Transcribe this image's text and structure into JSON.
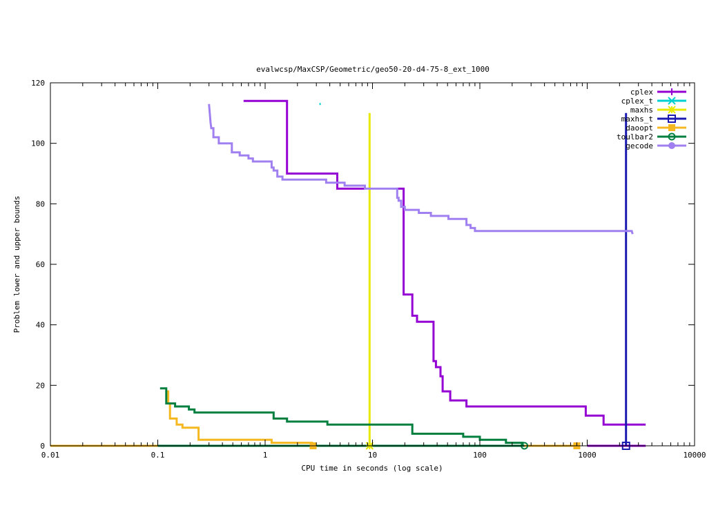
{
  "chart_data": {
    "type": "line",
    "title": "evalwcsp/MaxCSP/Geometric/geo50-20-d4-75-8_ext_1000",
    "xlabel": "CPU time in seconds (log scale)",
    "ylabel": "Problem lower and upper bounds",
    "xscale": "log",
    "xlim": [
      0.01,
      10000
    ],
    "ylim": [
      0,
      120
    ],
    "xticks": [
      {
        "value": 0.01,
        "label": "0.01"
      },
      {
        "value": 0.1,
        "label": "0.1"
      },
      {
        "value": 1,
        "label": "1"
      },
      {
        "value": 10,
        "label": "10"
      },
      {
        "value": 100,
        "label": "100"
      },
      {
        "value": 1000,
        "label": "1000"
      },
      {
        "value": 10000,
        "label": "10000"
      }
    ],
    "yticks": [
      {
        "value": 0,
        "label": "0"
      },
      {
        "value": 20,
        "label": "20"
      },
      {
        "value": 40,
        "label": "40"
      },
      {
        "value": 60,
        "label": "60"
      },
      {
        "value": 80,
        "label": "80"
      },
      {
        "value": 100,
        "label": "100"
      },
      {
        "value": 120,
        "label": "120"
      }
    ],
    "legend_position": "top-right",
    "grid": false,
    "series": [
      {
        "name": "cplex",
        "color": "#9400d3",
        "marker": "plus",
        "paths": [
          [
            [
              0.63,
              114
            ],
            [
              1.6,
              114
            ],
            [
              1.6,
              90
            ],
            [
              4.7,
              90
            ],
            [
              4.7,
              85
            ],
            [
              8.5,
              85
            ]
          ],
          [
            [
              17,
              85
            ],
            [
              19.5,
              85
            ],
            [
              19.5,
              50
            ],
            [
              23.5,
              50
            ],
            [
              23.5,
              43
            ],
            [
              26,
              43
            ],
            [
              26,
              41
            ],
            [
              37,
              41
            ],
            [
              37,
              28
            ],
            [
              39,
              28
            ],
            [
              39,
              26
            ],
            [
              43,
              26
            ],
            [
              43,
              23
            ],
            [
              45,
              23
            ],
            [
              45,
              18
            ],
            [
              53,
              18
            ],
            [
              53,
              15
            ],
            [
              75,
              15
            ],
            [
              75,
              13
            ],
            [
              970,
              13
            ],
            [
              970,
              10
            ],
            [
              1420,
              10
            ],
            [
              1420,
              7
            ],
            [
              3500,
              7
            ]
          ],
          [
            [
              1000,
              0
            ],
            [
              3500,
              0
            ]
          ]
        ],
        "markers": []
      },
      {
        "name": "cplex_t",
        "color": "#00d0d0",
        "marker": "x",
        "paths": [
          [
            [
              3.2,
              113
            ],
            [
              3.3,
              113
            ]
          ]
        ],
        "markers": []
      },
      {
        "name": "maxhs",
        "color": "#e8e800",
        "marker": "star",
        "paths": [
          [
            [
              9.4,
              110
            ],
            [
              9.4,
              0
            ]
          ],
          [
            [
              9.4,
              0
            ],
            [
              10,
              0
            ]
          ]
        ],
        "markers": [
          [
            9.4,
            0
          ]
        ]
      },
      {
        "name": "maxhs_t",
        "color": "#1a1ab0",
        "marker": "square",
        "paths": [
          [
            [
              2300,
              110
            ],
            [
              2300,
              0
            ]
          ]
        ],
        "markers": [
          [
            2300,
            0
          ]
        ]
      },
      {
        "name": "daoopt",
        "color": "#f5b820",
        "marker": "filled-square",
        "paths": [
          [
            [
              0.12,
              18
            ],
            [
              0.125,
              18
            ],
            [
              0.125,
              14
            ],
            [
              0.13,
              14
            ],
            [
              0.13,
              9
            ],
            [
              0.15,
              9
            ],
            [
              0.15,
              7
            ],
            [
              0.17,
              7
            ],
            [
              0.17,
              6
            ],
            [
              0.24,
              6
            ],
            [
              0.24,
              2
            ],
            [
              1.15,
              2
            ],
            [
              1.15,
              1
            ],
            [
              2.8,
              1
            ]
          ],
          [
            [
              0.01,
              0
            ],
            [
              800,
              0
            ]
          ]
        ],
        "markers": [
          [
            2.8,
            0
          ],
          [
            800,
            0
          ]
        ]
      },
      {
        "name": "toulbar2",
        "color": "#007f3f",
        "marker": "circle",
        "paths": [
          [
            [
              0.105,
              19
            ],
            [
              0.12,
              19
            ],
            [
              0.12,
              14
            ],
            [
              0.145,
              14
            ],
            [
              0.145,
              13
            ],
            [
              0.195,
              13
            ],
            [
              0.195,
              12
            ],
            [
              0.22,
              12
            ],
            [
              0.22,
              11
            ],
            [
              1.2,
              11
            ],
            [
              1.2,
              9
            ],
            [
              1.6,
              9
            ],
            [
              1.6,
              8
            ],
            [
              3.8,
              8
            ],
            [
              3.8,
              7
            ],
            [
              23.5,
              7
            ],
            [
              23.5,
              4
            ],
            [
              70,
              4
            ],
            [
              70,
              3
            ],
            [
              100,
              3
            ],
            [
              100,
              2
            ],
            [
              175,
              2
            ],
            [
              175,
              1
            ],
            [
              250,
              1
            ],
            [
              250,
              0
            ]
          ],
          [
            [
              0.1,
              0
            ],
            [
              260,
              0
            ]
          ]
        ],
        "markers": [
          [
            260,
            0
          ]
        ]
      },
      {
        "name": "gecode",
        "color": "#a080f0",
        "marker": "filled-circle",
        "paths": [
          [
            [
              0.3,
              113
            ],
            [
              0.305,
              110
            ],
            [
              0.31,
              107
            ],
            [
              0.315,
              105
            ],
            [
              0.33,
              105
            ],
            [
              0.33,
              102
            ],
            [
              0.37,
              102
            ],
            [
              0.37,
              100
            ],
            [
              0.49,
              100
            ],
            [
              0.49,
              97
            ],
            [
              0.58,
              97
            ],
            [
              0.58,
              96
            ],
            [
              0.7,
              96
            ],
            [
              0.7,
              95
            ],
            [
              0.77,
              95
            ],
            [
              0.77,
              94
            ],
            [
              1.15,
              94
            ],
            [
              1.15,
              92
            ],
            [
              1.2,
              92
            ],
            [
              1.2,
              91
            ],
            [
              1.3,
              91
            ],
            [
              1.3,
              89
            ],
            [
              1.45,
              89
            ],
            [
              1.45,
              88
            ],
            [
              3.7,
              88
            ],
            [
              3.7,
              87
            ],
            [
              5.5,
              87
            ],
            [
              5.5,
              86
            ],
            [
              8.5,
              86
            ],
            [
              8.5,
              85
            ],
            [
              17,
              85
            ],
            [
              17,
              82
            ],
            [
              17.5,
              82
            ],
            [
              17.5,
              81
            ],
            [
              18.5,
              81
            ],
            [
              18.5,
              79
            ],
            [
              20,
              79
            ],
            [
              20,
              78
            ],
            [
              27,
              78
            ],
            [
              27,
              77
            ],
            [
              35,
              77
            ],
            [
              35,
              76
            ],
            [
              51,
              76
            ],
            [
              51,
              75
            ],
            [
              75,
              75
            ],
            [
              75,
              73
            ],
            [
              82,
              73
            ],
            [
              82,
              72
            ],
            [
              90,
              72
            ],
            [
              90,
              71
            ],
            [
              2600,
              71
            ],
            [
              2650,
              70
            ]
          ]
        ],
        "markers": []
      }
    ]
  }
}
